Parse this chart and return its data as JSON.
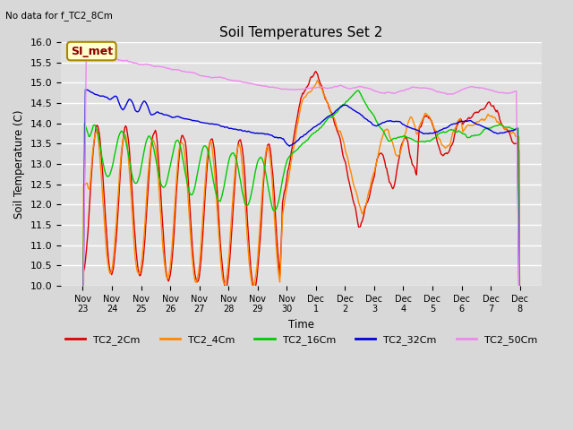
{
  "title": "Soil Temperatures Set 2",
  "subtitle": "No data for f_TC2_8Cm",
  "ylabel": "Soil Temperature (C)",
  "xlabel": "Time",
  "ylim": [
    10.0,
    16.0
  ],
  "yticks": [
    10.0,
    10.5,
    11.0,
    11.5,
    12.0,
    12.5,
    13.0,
    13.5,
    14.0,
    14.5,
    15.0,
    15.5,
    16.0
  ],
  "bg_color": "#d8d8d8",
  "plot_bg": "#e0e0e0",
  "legend_entries": [
    "TC2_2Cm",
    "TC2_4Cm",
    "TC2_16Cm",
    "TC2_32Cm",
    "TC2_50Cm"
  ],
  "line_colors": [
    "#dd0000",
    "#ff8800",
    "#00cc00",
    "#0000dd",
    "#ee88ee"
  ],
  "annotation_text": "SI_met",
  "annotation_fg": "#880000",
  "annotation_bg": "#ffffcc",
  "annotation_border": "#aa8800",
  "xtick_labels": [
    "Nov 23",
    "Nov 24",
    "Nov 25",
    "Nov 26",
    "Nov 27",
    "Nov 28",
    "Nov 29",
    "Nov 30",
    "Dec 1",
    "Dec 2",
    "Dec 3",
    "Dec 4",
    "Dec 5",
    "Dec 6",
    "Dec 7",
    "Dec 8"
  ],
  "num_points": 500
}
